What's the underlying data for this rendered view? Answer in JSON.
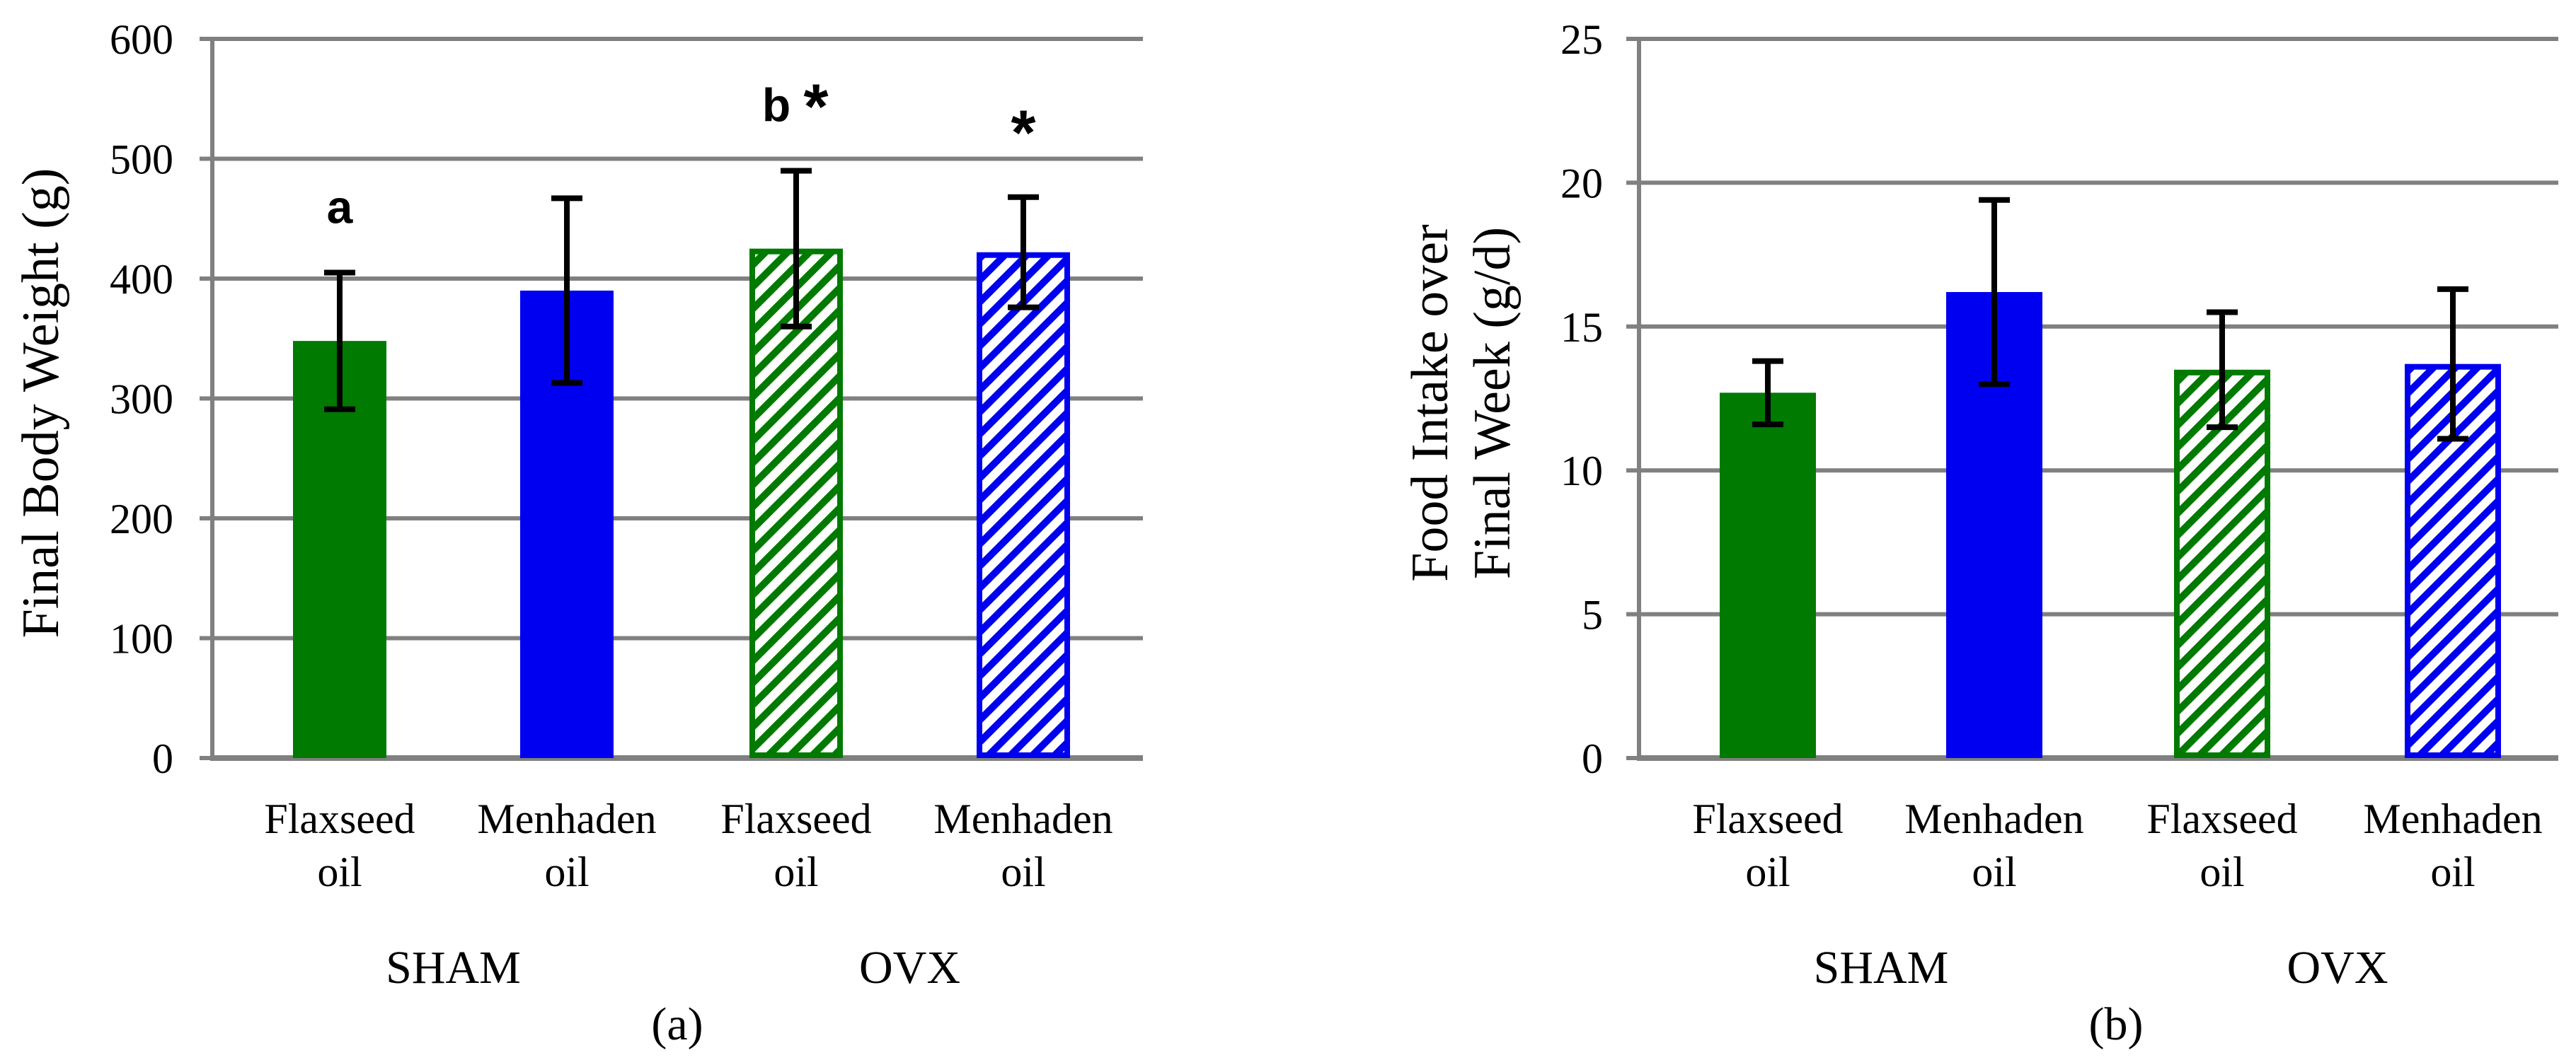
{
  "chart_data": [
    {
      "type": "bar",
      "panel": "(a)",
      "ylabel": "Final Body Weight (g)",
      "ylim": [
        0,
        600
      ],
      "yticks": [
        "0",
        "100",
        "200",
        "300",
        "400",
        "500",
        "600"
      ],
      "categories": [
        {
          "line1": "Flaxseed",
          "line2": "oil"
        },
        {
          "line1": "Menhaden",
          "line2": "oil"
        },
        {
          "line1": "Flaxseed",
          "line2": "oil"
        },
        {
          "line1": "Menhaden",
          "line2": "oil"
        }
      ],
      "groups": [
        "SHAM",
        "OVX"
      ],
      "values": [
        348,
        390,
        425,
        422
      ],
      "errors": [
        57,
        77,
        65,
        46
      ],
      "annotations": [
        "a",
        "",
        "b",
        ""
      ],
      "stars": [
        "",
        "",
        "*",
        "*"
      ],
      "grid": true
    },
    {
      "type": "bar",
      "panel": "(b)",
      "ylabel_lines": [
        "Food Intake over",
        "Final Week (g/d)"
      ],
      "ylim": [
        0,
        25
      ],
      "yticks": [
        "0",
        "5",
        "10",
        "15",
        "20",
        "25"
      ],
      "categories": [
        {
          "line1": "Flaxseed",
          "line2": "oil"
        },
        {
          "line1": "Menhaden",
          "line2": "oil"
        },
        {
          "line1": "Flaxseed",
          "line2": "oil"
        },
        {
          "line1": "Menhaden",
          "line2": "oil"
        }
      ],
      "groups": [
        "SHAM",
        "OVX"
      ],
      "values": [
        12.7,
        16.2,
        13.5,
        13.7
      ],
      "errors": [
        1.1,
        3.2,
        2.0,
        2.6
      ],
      "annotations": [
        "",
        "",
        "",
        ""
      ],
      "stars": [
        "",
        "",
        "",
        ""
      ],
      "grid": true
    }
  ],
  "series_style": [
    {
      "color": "#007a00",
      "pattern": "solid"
    },
    {
      "color": "#0000f0",
      "pattern": "solid"
    },
    {
      "color": "#007a00",
      "pattern": "hatch"
    },
    {
      "color": "#0000f0",
      "pattern": "hatch"
    }
  ],
  "colors": {
    "grid": "#808080",
    "error_bar": "#000000"
  }
}
